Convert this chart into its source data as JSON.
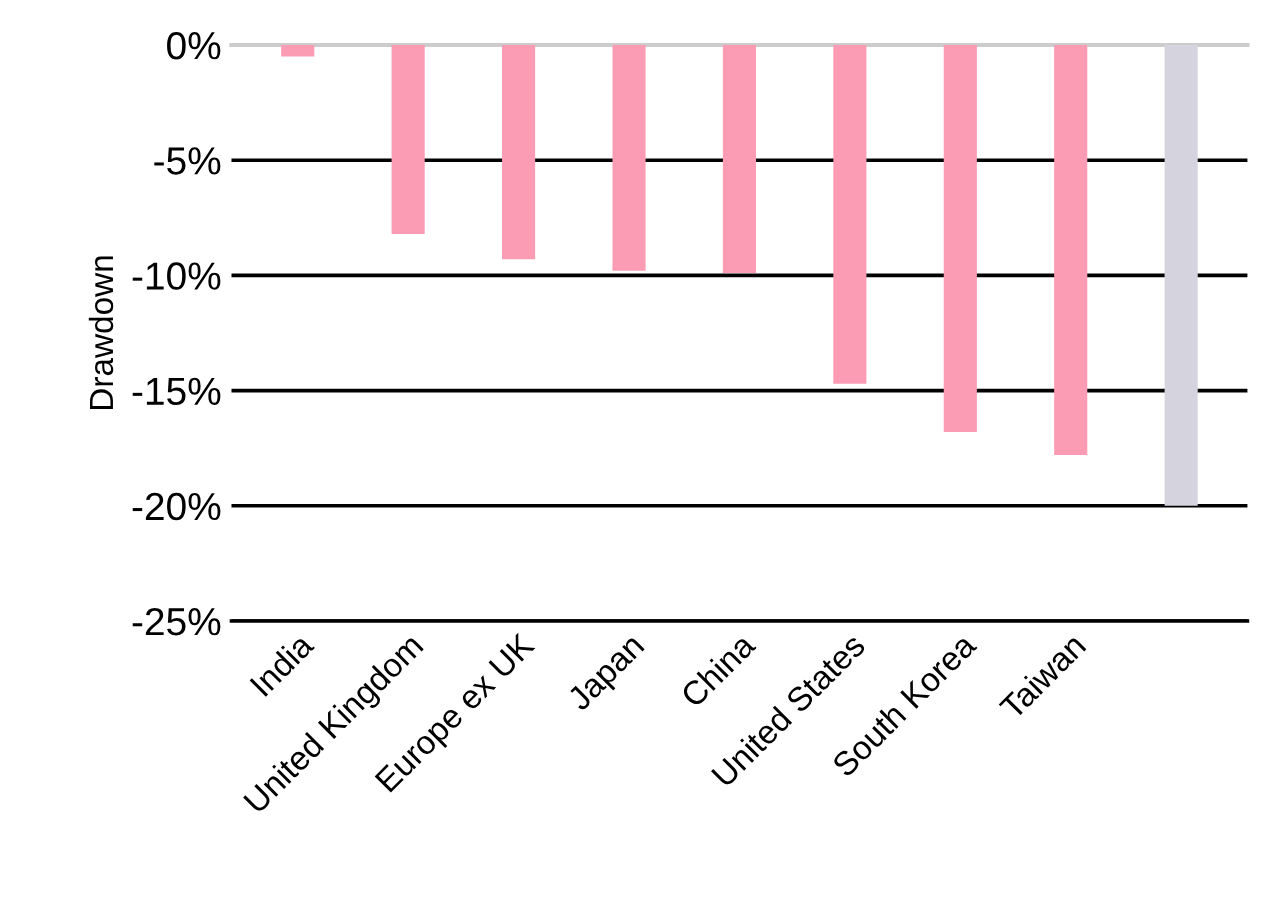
{
  "chart_data": {
    "type": "bar",
    "ylabel": "Drawdown",
    "categories": [
      "India",
      "United Kingdom",
      "Europe ex UK",
      "Japan",
      "China",
      "United States",
      "South Korea",
      "Taiwan",
      null
    ],
    "values": [
      -0.5,
      -8.2,
      -9.3,
      -9.8,
      -9.9,
      -14.7,
      -16.8,
      -17.8,
      -20.0
    ],
    "colors": [
      "#fb9bb4",
      "#fb9bb4",
      "#fb9bb4",
      "#fb9bb4",
      "#fb9bb4",
      "#fb9bb4",
      "#fb9bb4",
      "#fb9bb4",
      "#d5d4de"
    ],
    "ylim": [
      -25,
      0
    ],
    "yticks": [
      {
        "value": 0,
        "label": "0%"
      },
      {
        "value": -5,
        "label": "-5%"
      },
      {
        "value": -10,
        "label": "-10%"
      },
      {
        "value": -15,
        "label": "-15%"
      },
      {
        "value": -20,
        "label": "-20%"
      },
      {
        "value": -25,
        "label": "-25%"
      }
    ],
    "grid": "y"
  }
}
